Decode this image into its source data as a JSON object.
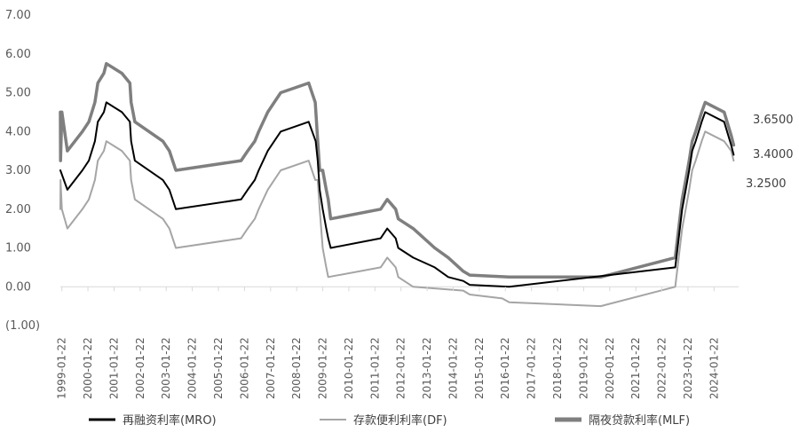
{
  "chart_data": {
    "type": "line",
    "title": "",
    "xlabel": "",
    "ylabel": "",
    "ylim": [
      -1,
      7
    ],
    "yticks": [
      "(1.00)",
      "0.00",
      "1.00",
      "2.00",
      "3.00",
      "4.00",
      "5.00",
      "6.00",
      "7.00"
    ],
    "ytick_values": [
      -1,
      0,
      1,
      2,
      3,
      4,
      5,
      6,
      7
    ],
    "xlim": [
      "1999-01-01",
      "2024-12-31"
    ],
    "xticks": [
      "1999-01-22",
      "2000-01-22",
      "2001-01-22",
      "2002-01-22",
      "2003-01-22",
      "2004-01-22",
      "2005-01-22",
      "2006-01-22",
      "2007-01-22",
      "2008-01-22",
      "2009-01-22",
      "2010-01-22",
      "2011-01-22",
      "2012-01-22",
      "2013-01-22",
      "2014-01-22",
      "2015-01-22",
      "2016-01-22",
      "2017-01-22",
      "2018-01-22",
      "2019-01-22",
      "2020-01-22",
      "2021-01-22",
      "2022-01-22",
      "2023-01-22",
      "2024-01-22"
    ],
    "grid": false,
    "legend_position": "bottom",
    "end_labels": [
      "3.6500",
      "3.4000",
      "3.2500"
    ],
    "series": [
      {
        "name": "再融资利率(MRO)",
        "color": "#000000",
        "points": [
          [
            "1999-01-01",
            3.0
          ],
          [
            "1999-04-09",
            2.5
          ],
          [
            "1999-11-05",
            3.0
          ],
          [
            "2000-02-04",
            3.25
          ],
          [
            "2000-03-17",
            3.5
          ],
          [
            "2000-04-28",
            3.75
          ],
          [
            "2000-06-09",
            4.25
          ],
          [
            "2000-09-01",
            4.5
          ],
          [
            "2000-10-06",
            4.75
          ],
          [
            "2001-05-11",
            4.5
          ],
          [
            "2001-08-31",
            4.25
          ],
          [
            "2001-09-18",
            3.75
          ],
          [
            "2001-11-09",
            3.25
          ],
          [
            "2002-12-06",
            2.75
          ],
          [
            "2003-03-07",
            2.5
          ],
          [
            "2003-06-06",
            2.0
          ],
          [
            "2005-12-06",
            2.25
          ],
          [
            "2006-03-08",
            2.5
          ],
          [
            "2006-06-15",
            2.75
          ],
          [
            "2006-08-09",
            3.0
          ],
          [
            "2006-10-11",
            3.25
          ],
          [
            "2006-12-13",
            3.5
          ],
          [
            "2007-03-14",
            3.75
          ],
          [
            "2007-06-13",
            4.0
          ],
          [
            "2008-07-09",
            4.25
          ],
          [
            "2008-10-15",
            3.75
          ],
          [
            "2008-11-12",
            3.25
          ],
          [
            "2008-12-10",
            2.5
          ],
          [
            "2009-01-21",
            2.0
          ],
          [
            "2009-03-11",
            1.5
          ],
          [
            "2009-04-08",
            1.25
          ],
          [
            "2009-05-13",
            1.0
          ],
          [
            "2011-04-13",
            1.25
          ],
          [
            "2011-07-13",
            1.5
          ],
          [
            "2011-11-09",
            1.25
          ],
          [
            "2011-12-14",
            1.0
          ],
          [
            "2012-07-11",
            0.75
          ],
          [
            "2013-05-08",
            0.5
          ],
          [
            "2013-11-13",
            0.25
          ],
          [
            "2014-06-11",
            0.15
          ],
          [
            "2014-09-10",
            0.05
          ],
          [
            "2016-03-16",
            0.0
          ],
          [
            "2022-07-27",
            0.5
          ],
          [
            "2022-09-14",
            1.25
          ],
          [
            "2022-11-02",
            2.0
          ],
          [
            "2022-12-21",
            2.5
          ],
          [
            "2023-02-08",
            3.0
          ],
          [
            "2023-03-22",
            3.5
          ],
          [
            "2023-05-10",
            3.75
          ],
          [
            "2023-06-21",
            4.0
          ],
          [
            "2023-08-02",
            4.25
          ],
          [
            "2023-09-20",
            4.5
          ],
          [
            "2024-06-12",
            4.25
          ],
          [
            "2024-09-18",
            3.65
          ],
          [
            "2024-10-23",
            3.4
          ]
        ]
      },
      {
        "name": "存款便利利率(DF)",
        "color": "#a5a5a5",
        "points": [
          [
            "1999-01-01",
            2.0
          ],
          [
            "1999-01-04",
            2.75
          ],
          [
            "1999-01-22",
            2.0
          ],
          [
            "1999-04-09",
            1.5
          ],
          [
            "1999-11-05",
            2.0
          ],
          [
            "2000-02-04",
            2.25
          ],
          [
            "2000-03-17",
            2.5
          ],
          [
            "2000-04-28",
            2.75
          ],
          [
            "2000-06-09",
            3.25
          ],
          [
            "2000-09-01",
            3.5
          ],
          [
            "2000-10-06",
            3.75
          ],
          [
            "2001-05-11",
            3.5
          ],
          [
            "2001-08-31",
            3.25
          ],
          [
            "2001-09-18",
            2.75
          ],
          [
            "2001-11-09",
            2.25
          ],
          [
            "2002-12-06",
            1.75
          ],
          [
            "2003-03-07",
            1.5
          ],
          [
            "2003-06-06",
            1.0
          ],
          [
            "2005-12-06",
            1.25
          ],
          [
            "2006-03-08",
            1.5
          ],
          [
            "2006-06-15",
            1.75
          ],
          [
            "2006-08-09",
            2.0
          ],
          [
            "2006-10-11",
            2.25
          ],
          [
            "2006-12-13",
            2.5
          ],
          [
            "2007-03-14",
            2.75
          ],
          [
            "2007-06-13",
            3.0
          ],
          [
            "2008-07-09",
            3.25
          ],
          [
            "2008-10-09",
            2.75
          ],
          [
            "2008-11-12",
            2.75
          ],
          [
            "2008-12-10",
            2.0
          ],
          [
            "2009-01-21",
            1.0
          ],
          [
            "2009-03-11",
            0.5
          ],
          [
            "2009-04-08",
            0.25
          ],
          [
            "2011-04-13",
            0.5
          ],
          [
            "2011-07-13",
            0.75
          ],
          [
            "2011-11-09",
            0.5
          ],
          [
            "2011-12-14",
            0.25
          ],
          [
            "2012-07-11",
            0.0
          ],
          [
            "2014-06-11",
            -0.1
          ],
          [
            "2014-09-10",
            -0.2
          ],
          [
            "2015-12-09",
            -0.3
          ],
          [
            "2016-03-16",
            -0.4
          ],
          [
            "2019-09-18",
            -0.5
          ],
          [
            "2022-07-27",
            0.0
          ],
          [
            "2022-09-14",
            0.75
          ],
          [
            "2022-11-02",
            1.5
          ],
          [
            "2022-12-21",
            2.0
          ],
          [
            "2023-02-08",
            2.5
          ],
          [
            "2023-03-22",
            3.0
          ],
          [
            "2023-05-10",
            3.25
          ],
          [
            "2023-06-21",
            3.5
          ],
          [
            "2023-08-02",
            3.75
          ],
          [
            "2023-09-20",
            4.0
          ],
          [
            "2024-06-12",
            3.75
          ],
          [
            "2024-09-18",
            3.5
          ],
          [
            "2024-10-23",
            3.25
          ]
        ]
      },
      {
        "name": "隔夜贷款利率(MLF)",
        "color": "#7f7f7f",
        "points": [
          [
            "1999-01-01",
            4.5
          ],
          [
            "1999-01-04",
            3.25
          ],
          [
            "1999-01-22",
            4.5
          ],
          [
            "1999-04-09",
            3.5
          ],
          [
            "1999-11-05",
            4.0
          ],
          [
            "2000-02-04",
            4.25
          ],
          [
            "2000-03-17",
            4.5
          ],
          [
            "2000-04-28",
            4.75
          ],
          [
            "2000-06-09",
            5.25
          ],
          [
            "2000-09-01",
            5.5
          ],
          [
            "2000-10-06",
            5.75
          ],
          [
            "2001-05-11",
            5.5
          ],
          [
            "2001-08-31",
            5.25
          ],
          [
            "2001-09-18",
            4.75
          ],
          [
            "2001-11-09",
            4.25
          ],
          [
            "2002-12-06",
            3.75
          ],
          [
            "2003-03-07",
            3.5
          ],
          [
            "2003-06-06",
            3.0
          ],
          [
            "2005-12-06",
            3.25
          ],
          [
            "2006-03-08",
            3.5
          ],
          [
            "2006-06-15",
            3.75
          ],
          [
            "2006-08-09",
            4.0
          ],
          [
            "2006-10-11",
            4.25
          ],
          [
            "2006-12-13",
            4.5
          ],
          [
            "2007-03-14",
            4.75
          ],
          [
            "2007-06-13",
            5.0
          ],
          [
            "2008-07-09",
            5.25
          ],
          [
            "2008-10-09",
            4.75
          ],
          [
            "2008-11-12",
            3.75
          ],
          [
            "2008-12-10",
            3.0
          ],
          [
            "2009-01-21",
            3.0
          ],
          [
            "2009-03-11",
            2.5
          ],
          [
            "2009-04-08",
            2.25
          ],
          [
            "2009-05-13",
            1.75
          ],
          [
            "2011-04-13",
            2.0
          ],
          [
            "2011-07-13",
            2.25
          ],
          [
            "2011-11-09",
            2.0
          ],
          [
            "2011-12-14",
            1.75
          ],
          [
            "2012-07-11",
            1.5
          ],
          [
            "2013-05-08",
            1.0
          ],
          [
            "2013-11-13",
            0.75
          ],
          [
            "2014-06-11",
            0.4
          ],
          [
            "2014-09-10",
            0.3
          ],
          [
            "2016-03-16",
            0.25
          ],
          [
            "2019-09-18",
            0.25
          ],
          [
            "2022-07-27",
            0.75
          ],
          [
            "2022-09-14",
            1.5
          ],
          [
            "2022-11-02",
            2.25
          ],
          [
            "2022-12-21",
            2.75
          ],
          [
            "2023-02-08",
            3.25
          ],
          [
            "2023-03-22",
            3.75
          ],
          [
            "2023-05-10",
            4.0
          ],
          [
            "2023-06-21",
            4.25
          ],
          [
            "2023-08-02",
            4.5
          ],
          [
            "2023-09-20",
            4.75
          ],
          [
            "2024-06-12",
            4.5
          ],
          [
            "2024-09-18",
            3.9
          ],
          [
            "2024-10-23",
            3.65
          ]
        ]
      }
    ]
  }
}
